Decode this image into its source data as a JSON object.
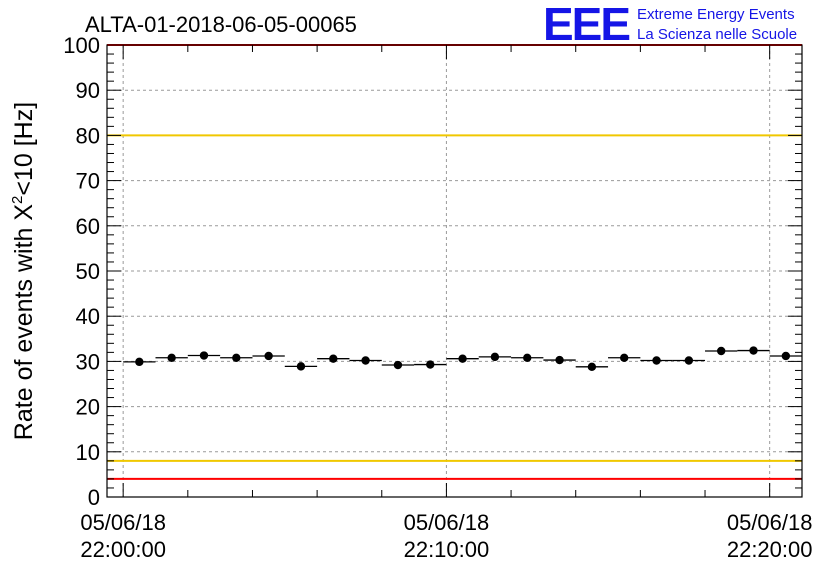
{
  "header": {
    "title": "ALTA-01-2018-06-05-00065",
    "logo": {
      "letters": "EEE",
      "line1": "Extreme Energy Events",
      "line2": "La Scienza nelle Scuole",
      "color": "#1515e6"
    }
  },
  "chart_data": {
    "type": "scatter",
    "title": "ALTA-01-2018-06-05-00065",
    "ylabel": "Rate of events with X²<10 [Hz]",
    "ylabel_parts": {
      "before": "Rate of events with X",
      "sup": "2",
      "after": "<10 [Hz]"
    },
    "xlabel": "",
    "ylim": [
      0,
      100
    ],
    "yticks": [
      0,
      10,
      20,
      30,
      40,
      50,
      60,
      70,
      80,
      90,
      100
    ],
    "ytick_labels": [
      "0",
      "10",
      "20",
      "30",
      "40",
      "50",
      "60",
      "70",
      "80",
      "90",
      "100"
    ],
    "xlim_minutes": [
      -0.5,
      21
    ],
    "x_unit": "minutes after 05/06/18 22:00:00",
    "xticks": [
      {
        "minutes": 0,
        "date": "05/06/18",
        "time": "22:00:00"
      },
      {
        "minutes": 10,
        "date": "05/06/18",
        "time": "22:10:00"
      },
      {
        "minutes": 20,
        "date": "05/06/18",
        "time": "22:20:00"
      }
    ],
    "bin_width_minutes": 1,
    "x_minutes": [
      0.5,
      1.5,
      2.5,
      3.5,
      4.5,
      5.5,
      6.5,
      7.5,
      8.5,
      9.5,
      10.5,
      11.5,
      12.5,
      13.5,
      14.5,
      15.5,
      16.5,
      17.5,
      18.5,
      19.5,
      20.5
    ],
    "values": [
      29.9,
      30.8,
      31.3,
      30.8,
      31.2,
      28.9,
      30.6,
      30.2,
      29.2,
      29.3,
      30.6,
      31.0,
      30.8,
      30.3,
      28.8,
      30.8,
      30.2,
      30.2,
      32.3,
      32.4,
      31.2
    ],
    "reference_lines": [
      {
        "value": 100,
        "color": "#ff0000"
      },
      {
        "value": 80,
        "color": "#f0c800"
      },
      {
        "value": 8,
        "color": "#f0c800"
      },
      {
        "value": 4,
        "color": "#ff0000"
      }
    ],
    "grid": true,
    "marker_color": "#000000"
  }
}
